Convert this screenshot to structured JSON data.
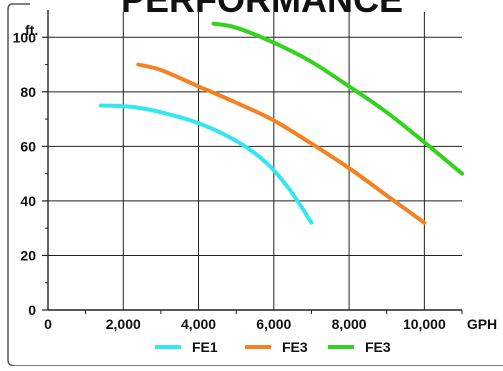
{
  "chart_data": {
    "type": "line",
    "title": "PERFORMANCE",
    "y_unit_label": "ft.",
    "x_unit_label": "GPH",
    "xlim": [
      0,
      11000
    ],
    "ylim": [
      0,
      110
    ],
    "x_gridlines": [
      0,
      2000,
      4000,
      6000,
      8000,
      10000
    ],
    "y_gridlines": [
      20,
      40,
      60,
      80,
      100
    ],
    "x_tick_labels": [
      "0",
      "2,000",
      "4,000",
      "6,000",
      "8,000",
      "10,000"
    ],
    "x_tick_values": [
      0,
      2000,
      4000,
      6000,
      8000,
      10000
    ],
    "y_tick_labels": [
      "0",
      "20",
      "40",
      "60",
      "80",
      "100"
    ],
    "y_tick_values": [
      0,
      20,
      40,
      60,
      80,
      100
    ],
    "grid": true,
    "legend_position": "bottom",
    "series": [
      {
        "name": "FE1",
        "color": "#33e6f2",
        "points": [
          [
            1400,
            75
          ],
          [
            2200,
            74.5
          ],
          [
            3000,
            72.5
          ],
          [
            4000,
            68.5
          ],
          [
            5000,
            62
          ],
          [
            5800,
            54
          ],
          [
            6400,
            44.5
          ],
          [
            7000,
            32
          ]
        ]
      },
      {
        "name": "FE3",
        "color": "#f58220",
        "points": [
          [
            2400,
            90
          ],
          [
            3000,
            88
          ],
          [
            4000,
            82
          ],
          [
            5000,
            76
          ],
          [
            6000,
            69.5
          ],
          [
            7000,
            61
          ],
          [
            8000,
            52
          ],
          [
            9000,
            42
          ],
          [
            10000,
            32
          ]
        ]
      },
      {
        "name": "FE3",
        "color": "#33d21e",
        "points": [
          [
            4400,
            105
          ],
          [
            5000,
            103.5
          ],
          [
            6000,
            98
          ],
          [
            7000,
            91
          ],
          [
            8000,
            82
          ],
          [
            9000,
            72.5
          ],
          [
            10000,
            61.5
          ],
          [
            11000,
            50
          ]
        ]
      }
    ]
  }
}
